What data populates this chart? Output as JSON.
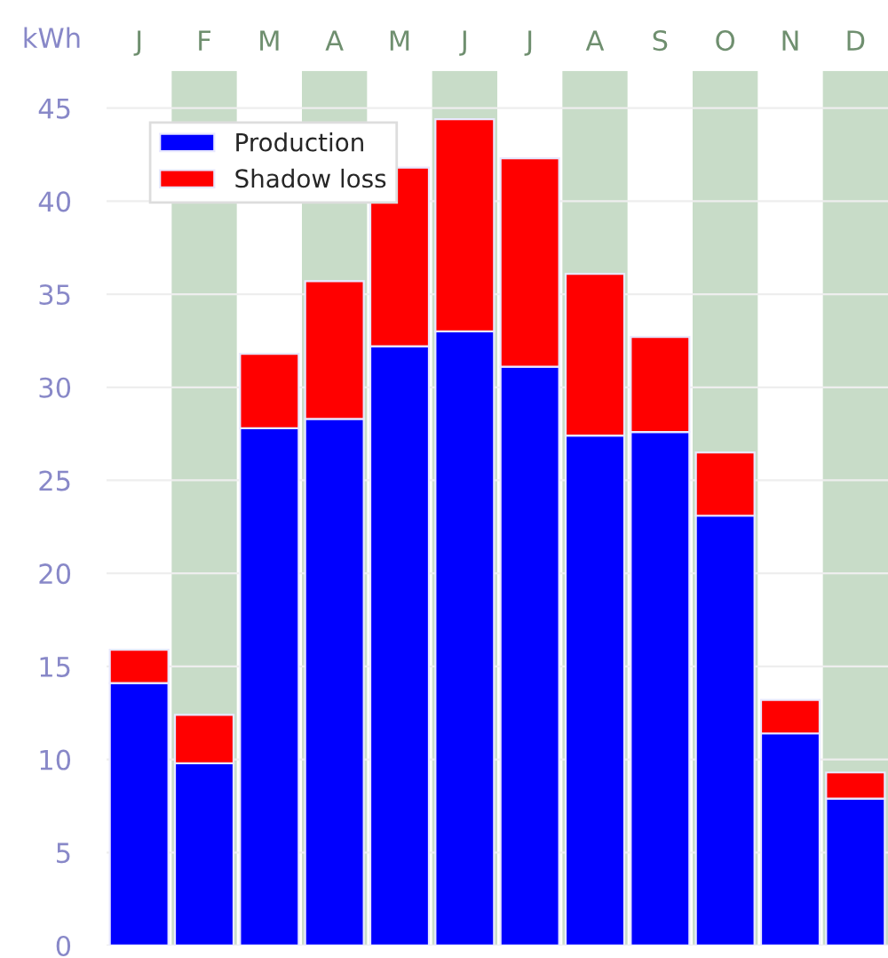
{
  "chart_data": {
    "type": "bar",
    "stacked": true,
    "ylabel": "kWh",
    "categories": [
      "J",
      "F",
      "M",
      "A",
      "M",
      "J",
      "J",
      "A",
      "S",
      "O",
      "N",
      "D"
    ],
    "series": [
      {
        "name": "Production",
        "color": "#0000ff",
        "values": [
          14.1,
          9.8,
          27.8,
          28.3,
          32.2,
          33.0,
          31.1,
          27.4,
          27.6,
          23.1,
          11.4,
          7.9
        ]
      },
      {
        "name": "Shadow loss",
        "color": "#ff0000",
        "values": [
          1.8,
          2.6,
          4.0,
          7.4,
          9.6,
          11.4,
          11.2,
          8.7,
          5.1,
          3.4,
          1.8,
          1.4
        ]
      }
    ],
    "ylim": [
      0,
      47
    ],
    "yticks": [
      0,
      5,
      10,
      15,
      20,
      25,
      30,
      35,
      40,
      45
    ],
    "grid": "y",
    "legend": "top left"
  }
}
